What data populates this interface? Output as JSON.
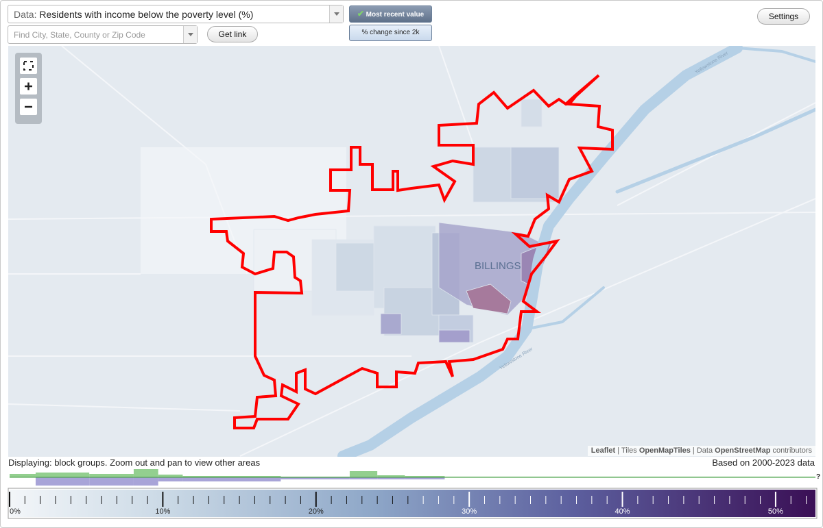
{
  "data_selector": {
    "prefix": "Data:",
    "value": "Residents with income below the poverty level (%)"
  },
  "search": {
    "placeholder": "Find City, State, County or Zip Code"
  },
  "buttons": {
    "get_link": "Get link",
    "most_recent": "Most recent value",
    "change": "% change since 2k",
    "settings": "Settings"
  },
  "map": {
    "city_label": "BILLINGS",
    "river_labels": [
      "Yellowstone River",
      "Yellowstone River"
    ],
    "attribution": [
      "Leaflet",
      "|",
      "Tiles",
      "OpenMapTiles",
      "|",
      "Data",
      "OpenStreetMap",
      "contributors"
    ]
  },
  "status": {
    "left": "Displaying: block groups. Zoom out and pan to view other areas",
    "right": "Based on 2000-2023 data"
  },
  "legend": {
    "xlim": [
      0,
      52.6
    ],
    "ticks": [
      {
        "value": 0,
        "label": "0%"
      },
      {
        "value": 10,
        "label": "10%"
      },
      {
        "value": 20,
        "label": "20%"
      },
      {
        "value": 30,
        "label": "30%"
      },
      {
        "value": 40,
        "label": "40%"
      },
      {
        "value": 50,
        "label": "50%"
      }
    ],
    "minor_ticks": [
      1,
      2,
      3,
      4,
      5,
      6,
      7,
      8,
      9,
      11,
      12,
      13,
      14,
      15,
      16,
      17,
      18,
      19,
      21,
      22,
      23,
      24,
      25,
      26,
      27,
      28,
      29,
      31,
      32,
      33,
      34,
      35,
      36,
      37,
      38,
      39,
      41,
      42,
      43,
      44,
      45,
      46,
      47,
      48,
      49,
      51,
      52
    ],
    "help": "?",
    "histogram": {
      "bins": [
        0,
        1.7,
        5.2,
        8.1,
        9.7,
        11.3,
        17.7,
        22.2,
        24.0,
        25.8,
        28.4,
        52.6
      ],
      "current": [
        5,
        7,
        5,
        12,
        4,
        2,
        1,
        9,
        3,
        2,
        1
      ],
      "previous": [
        0,
        12,
        12,
        12,
        6,
        6,
        3,
        3,
        3,
        3,
        0
      ]
    }
  }
}
